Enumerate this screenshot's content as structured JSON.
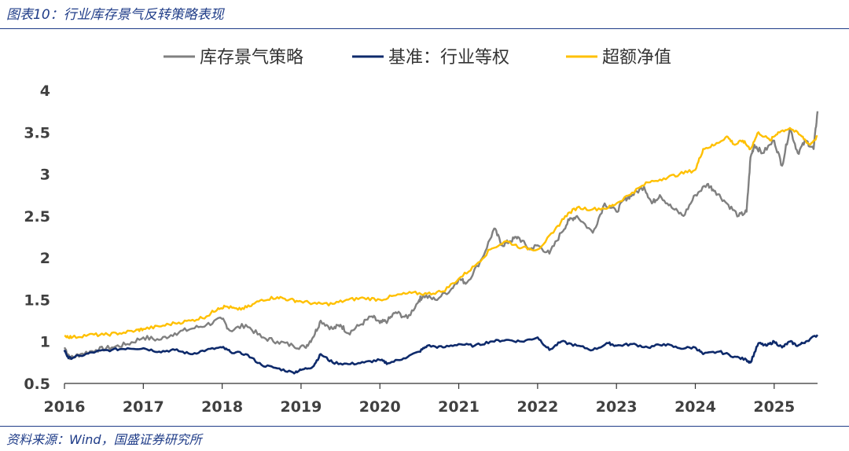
{
  "header": {
    "title": "图表10：行业库存景气反转策略表现"
  },
  "footer": {
    "source": "资料来源：Wind，国盛证券研究所"
  },
  "chart_data": {
    "type": "line",
    "title": "",
    "xlabel": "",
    "ylabel": "",
    "xlim": [
      2016,
      2025.55
    ],
    "ylim": [
      0.5,
      4
    ],
    "xticks": [
      "2016",
      "2017",
      "2018",
      "2019",
      "2020",
      "2021",
      "2022",
      "2023",
      "2024",
      "2025"
    ],
    "yticks": [
      "0.5",
      "1",
      "1.5",
      "2",
      "2.5",
      "3",
      "3.5",
      "4"
    ],
    "legend_position": "top",
    "grid": false,
    "series": [
      {
        "name": "库存景气策略",
        "color": "#808080",
        "x": [
          2016.0,
          2016.08,
          2016.2,
          2016.4,
          2016.6,
          2016.8,
          2017.0,
          2017.2,
          2017.4,
          2017.6,
          2017.8,
          2018.0,
          2018.1,
          2018.3,
          2018.5,
          2018.7,
          2018.9,
          2019.05,
          2019.15,
          2019.25,
          2019.4,
          2019.5,
          2019.6,
          2019.75,
          2019.9,
          2020.0,
          2020.1,
          2020.2,
          2020.35,
          2020.5,
          2020.55,
          2020.7,
          2020.9,
          2021.0,
          2021.1,
          2021.3,
          2021.45,
          2021.55,
          2021.65,
          2021.75,
          2021.9,
          2022.0,
          2022.15,
          2022.3,
          2022.4,
          2022.5,
          2022.7,
          2022.85,
          2023.0,
          2023.1,
          2023.2,
          2023.35,
          2023.45,
          2023.55,
          2023.7,
          2023.85,
          2024.0,
          2024.15,
          2024.25,
          2024.4,
          2024.55,
          2024.65,
          2024.7,
          2024.75,
          2024.85,
          2025.0,
          2025.1,
          2025.2,
          2025.3,
          2025.4,
          2025.5,
          2025.55
        ],
        "values": [
          0.93,
          0.8,
          0.85,
          0.9,
          0.93,
          0.97,
          1.05,
          1.02,
          1.1,
          1.15,
          1.2,
          1.27,
          1.13,
          1.2,
          1.05,
          1.0,
          0.95,
          0.93,
          1.05,
          1.25,
          1.15,
          1.2,
          1.1,
          1.2,
          1.3,
          1.22,
          1.25,
          1.35,
          1.28,
          1.5,
          1.55,
          1.5,
          1.62,
          1.75,
          1.7,
          2.0,
          2.35,
          2.15,
          2.2,
          2.25,
          2.1,
          2.15,
          2.05,
          2.3,
          2.45,
          2.5,
          2.3,
          2.65,
          2.55,
          2.7,
          2.75,
          2.85,
          2.65,
          2.75,
          2.6,
          2.5,
          2.75,
          2.88,
          2.8,
          2.65,
          2.5,
          2.55,
          3.2,
          3.35,
          3.25,
          3.4,
          3.1,
          3.55,
          3.25,
          3.4,
          3.3,
          3.75
        ]
      },
      {
        "name": "基准：行业等权",
        "color": "#0E2A6B",
        "x": [
          2016.0,
          2016.05,
          2016.2,
          2016.4,
          2016.6,
          2016.8,
          2017.0,
          2017.2,
          2017.4,
          2017.6,
          2017.8,
          2018.0,
          2018.1,
          2018.3,
          2018.5,
          2018.7,
          2018.9,
          2019.0,
          2019.15,
          2019.25,
          2019.4,
          2019.6,
          2019.8,
          2020.0,
          2020.1,
          2020.3,
          2020.5,
          2020.6,
          2020.8,
          2021.0,
          2021.2,
          2021.4,
          2021.6,
          2021.8,
          2022.0,
          2022.15,
          2022.3,
          2022.5,
          2022.7,
          2022.9,
          2023.0,
          2023.2,
          2023.4,
          2023.6,
          2023.8,
          2024.0,
          2024.1,
          2024.3,
          2024.5,
          2024.65,
          2024.7,
          2024.8,
          2024.9,
          2025.0,
          2025.1,
          2025.2,
          2025.3,
          2025.4,
          2025.55
        ],
        "values": [
          0.9,
          0.8,
          0.83,
          0.88,
          0.9,
          0.92,
          0.92,
          0.88,
          0.9,
          0.85,
          0.9,
          0.93,
          0.88,
          0.85,
          0.72,
          0.68,
          0.63,
          0.66,
          0.7,
          0.85,
          0.75,
          0.73,
          0.75,
          0.78,
          0.74,
          0.8,
          0.88,
          0.95,
          0.93,
          0.97,
          0.95,
          1.0,
          1.02,
          1.0,
          1.05,
          0.9,
          1.0,
          0.95,
          0.9,
          0.98,
          0.95,
          0.97,
          0.93,
          0.97,
          0.92,
          0.93,
          0.85,
          0.88,
          0.82,
          0.78,
          0.75,
          0.98,
          0.95,
          1.0,
          0.93,
          1.0,
          0.95,
          1.0,
          1.08
        ]
      },
      {
        "name": "超额净值",
        "color": "#FFC000",
        "x": [
          2016.0,
          2016.1,
          2016.3,
          2016.5,
          2016.7,
          2016.9,
          2017.0,
          2017.2,
          2017.4,
          2017.6,
          2017.8,
          2017.95,
          2018.05,
          2018.2,
          2018.35,
          2018.5,
          2018.7,
          2018.85,
          2019.0,
          2019.2,
          2019.4,
          2019.6,
          2019.8,
          2020.0,
          2020.2,
          2020.4,
          2020.6,
          2020.8,
          2021.0,
          2021.2,
          2021.4,
          2021.6,
          2021.8,
          2022.0,
          2022.2,
          2022.35,
          2022.5,
          2022.7,
          2022.9,
          2023.0,
          2023.2,
          2023.4,
          2023.6,
          2023.8,
          2024.0,
          2024.1,
          2024.25,
          2024.4,
          2024.5,
          2024.6,
          2024.7,
          2024.8,
          2024.95,
          2025.05,
          2025.2,
          2025.35,
          2025.45,
          2025.55
        ],
        "values": [
          1.07,
          1.05,
          1.08,
          1.08,
          1.1,
          1.13,
          1.15,
          1.18,
          1.22,
          1.25,
          1.3,
          1.4,
          1.42,
          1.38,
          1.42,
          1.5,
          1.53,
          1.5,
          1.48,
          1.45,
          1.45,
          1.5,
          1.52,
          1.5,
          1.55,
          1.58,
          1.57,
          1.6,
          1.75,
          1.9,
          2.1,
          2.2,
          2.12,
          2.1,
          2.3,
          2.5,
          2.6,
          2.58,
          2.6,
          2.65,
          2.78,
          2.9,
          2.95,
          3.0,
          3.05,
          3.3,
          3.35,
          3.45,
          3.35,
          3.4,
          3.3,
          3.5,
          3.4,
          3.5,
          3.55,
          3.45,
          3.35,
          3.45
        ]
      }
    ]
  }
}
